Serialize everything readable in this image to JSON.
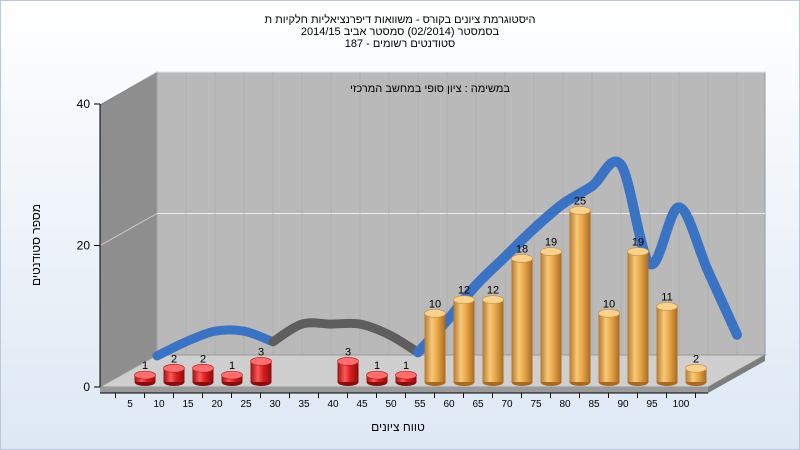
{
  "chart_data": {
    "type": "bar",
    "title_lines": [
      "היסטוגרמת ציונים בקורס - משוואות דיפרנציאליות חלקיות ת",
      "בסמסטר  (02/2014)  סמסטר אביב 2014/15",
      "סטודנטים רשומים - 187"
    ],
    "annotation": "במשימה : ציון סופי במחשב המרכזי",
    "xlabel": "טווח ציונים",
    "ylabel": "מספר סטודנטים",
    "ylim": [
      0,
      40
    ],
    "yticks": [
      "0",
      "20",
      "40"
    ],
    "categories": [
      "5",
      "10",
      "15",
      "20",
      "25",
      "30",
      "35",
      "40",
      "45",
      "50",
      "55",
      "60",
      "65",
      "70",
      "75",
      "80",
      "85",
      "90",
      "95",
      "100"
    ],
    "values": [
      1,
      2,
      2,
      1,
      3,
      0,
      0,
      3,
      1,
      1,
      10,
      12,
      12,
      18,
      19,
      25,
      10,
      19,
      11,
      2
    ],
    "data_labels": [
      "1",
      "2",
      "2",
      "1",
      "3",
      "",
      "",
      "3",
      "1",
      "1",
      "10",
      "12",
      "12",
      "18",
      "19",
      "25",
      "10",
      "19",
      "11",
      "2"
    ],
    "trend_values": [
      1.0,
      3.0,
      4.5,
      4.5,
      3.0,
      5.5,
      5.5,
      5.5,
      4.0,
      1.5,
      6.0,
      11.0,
      15.0,
      19.0,
      22.5,
      25.0,
      28.0,
      14.0,
      22.0,
      13.0,
      4.0
    ],
    "colors": {
      "low_bar": "#d91f1f",
      "high_bar": "#e9a84a",
      "trend_high": "#3b73c4",
      "trend_low": "#5e5e5e",
      "plot_back": "#b9b9b9",
      "plot_side": "#8e8e8e",
      "plot_floor": "#cfcfcf"
    },
    "legend": "none",
    "grid": true
  }
}
